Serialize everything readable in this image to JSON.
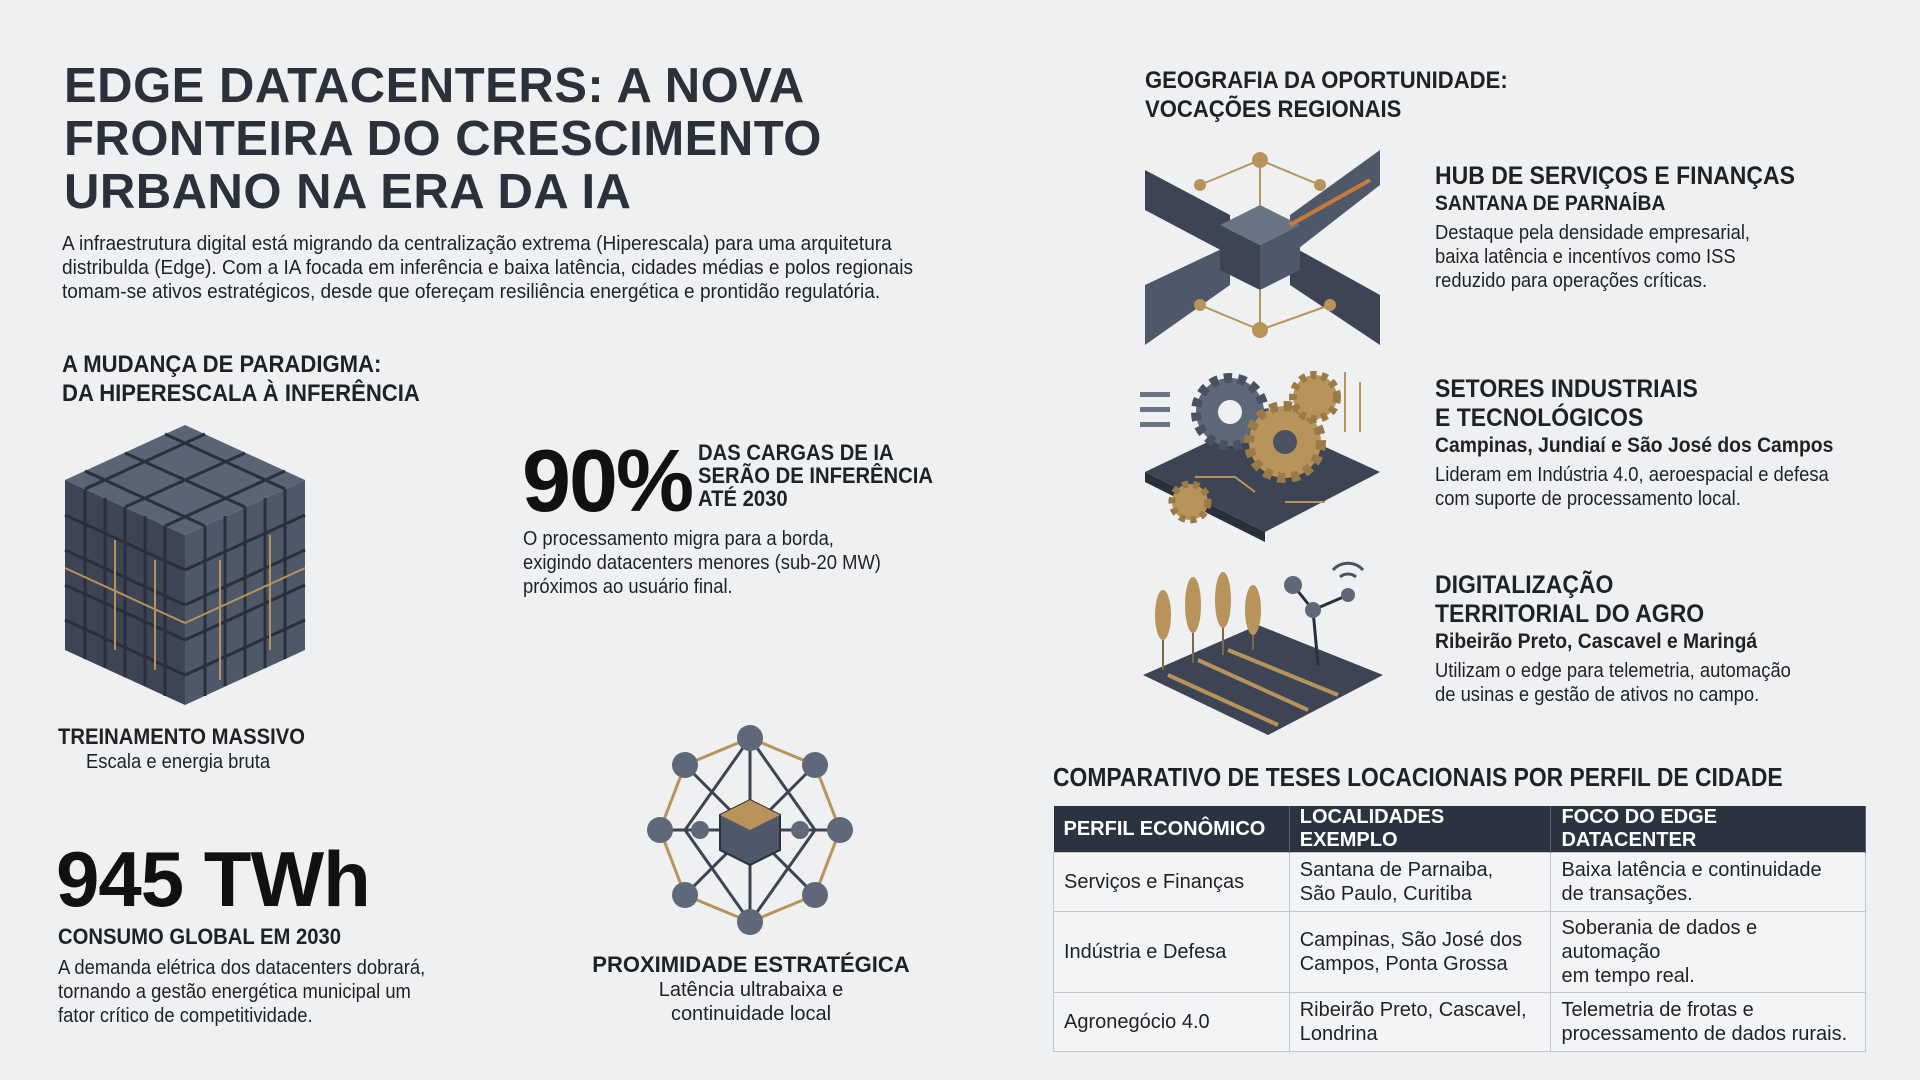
{
  "title": [
    "EDGE DATACENTERS: A NOVA",
    "FRONTEIRA DO CRESCIMENTO",
    "URBANO NA ERA DA IA"
  ],
  "intro": [
    "A infraestrutura digital está migrando da centralização extrema (Hiperescala) para uma arquitetura",
    "distribulda (Edge). Com a IA focada em inferência e baixa latência, cidades médias e polos regionais",
    "tomam-se ativos estratégicos, desde que ofereçam resiliência energética e prontidão regulatória."
  ],
  "paradigm": {
    "heading": [
      "A MUDANÇA DE PARADIGMA:",
      "DA HIPERESCALA À INFERÊNCIA"
    ],
    "training": {
      "title": "TREINAMENTO MASSIVO",
      "subtitle": "Escala e energia bruta"
    },
    "stat90": {
      "value": "90%",
      "label": [
        "DAS CARGAS DE IA",
        "SERÃO DE INFERÊNCIA",
        "ATÉ 2030"
      ],
      "text": [
        "O processamento migra para a borda,",
        "exigindo datacenters menores (sub-20 MW)",
        "próximos ao usuário final."
      ]
    },
    "stat945": {
      "value": "945 TWh",
      "label": "CONSUMO GLOBAL EM 2030",
      "text": [
        "A demanda elétrica dos datacenters dobrará,",
        "tornando a gestão energética municipal um",
        "fator crítico de competitividade."
      ]
    },
    "proximity": {
      "title": "PROXIMIDADE ESTRATÉGICA",
      "subtitle": [
        "Latência ultrabaixa e",
        "continuidade local"
      ]
    }
  },
  "geography": {
    "heading": [
      "GEOGRAFIA DA OPORTUNIDADE:",
      "VOCAÇÕES REGIONAIS"
    ],
    "items": [
      {
        "icon": "finance-hub-icon",
        "title": [
          "HUB DE SERVIÇOS E FINANÇAS"
        ],
        "cities": "SANTANA DE PARNAÍBA",
        "text": [
          "Destaque pela densidade empresarial,",
          "baixa latência e incentívos como ISS",
          "reduzido para operações críticas."
        ]
      },
      {
        "icon": "industry-gears-icon",
        "title": [
          "SETORES INDUSTRIAIS",
          "E TECNOLÓGICOS"
        ],
        "cities": "Campinas, Jundiaí e São José dos Campos",
        "text": [
          "Lideram em Indústria 4.0, aeroespacial e defesa",
          "com suporte de processamento local."
        ]
      },
      {
        "icon": "agro-icon",
        "title": [
          "DIGITALIZAÇÃO",
          "TERRITORIAL DO AGRO"
        ],
        "cities": "Ribeirão Preto, Cascavel e Maringá",
        "text": [
          "Utilizam o edge para telemetria, automação",
          "de usinas e gestão de ativos no campo."
        ]
      }
    ]
  },
  "table": {
    "heading": "COMPARATIVO DE TESES LOCACIONAIS POR PERFIL DE CIDADE",
    "columns": [
      "PERFIL ECONÔMICO",
      "LOCALIDADES EXEMPLO",
      "FOCO DO EDGE DATACENTER"
    ],
    "rows": [
      [
        [
          "Serviços e Finanças"
        ],
        [
          "Santana de Parnaiba,",
          "São Paulo, Curitiba"
        ],
        [
          "Baixa latência e continuidade",
          "de transações."
        ]
      ],
      [
        [
          "Indústria e Defesa"
        ],
        [
          "Campinas, São José dos",
          "Campos, Ponta Grossa"
        ],
        [
          "Soberania de dados e automação",
          "em tempo real."
        ]
      ],
      [
        [
          "Agronegócio 4.0"
        ],
        [
          "Ribeirão Preto, Cascavel,",
          "Londrina"
        ],
        [
          "Telemetria de frotas e",
          "processamento de dados rurais."
        ]
      ]
    ]
  },
  "colors": {
    "dark": "#2b3340",
    "slate": "#4a5262",
    "gold": "#b8935a",
    "background": "#eef0f2"
  }
}
